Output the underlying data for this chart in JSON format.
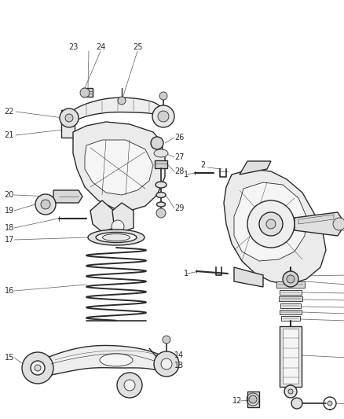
{
  "bg_color": "#ffffff",
  "line_color": "#2a2a2a",
  "label_color": "#2a2a2a",
  "figsize": [
    4.38,
    5.33
  ],
  "dpi": 100,
  "label_fontsize": 7.0,
  "leader_color": "#666666",
  "leader_lw": 0.55,
  "part_lw": 1.0,
  "part_lw_thin": 0.6,
  "spring_color": "#2a2a2a",
  "fill_color": "#f2f2f2",
  "fill_color2": "#e8e8e8"
}
